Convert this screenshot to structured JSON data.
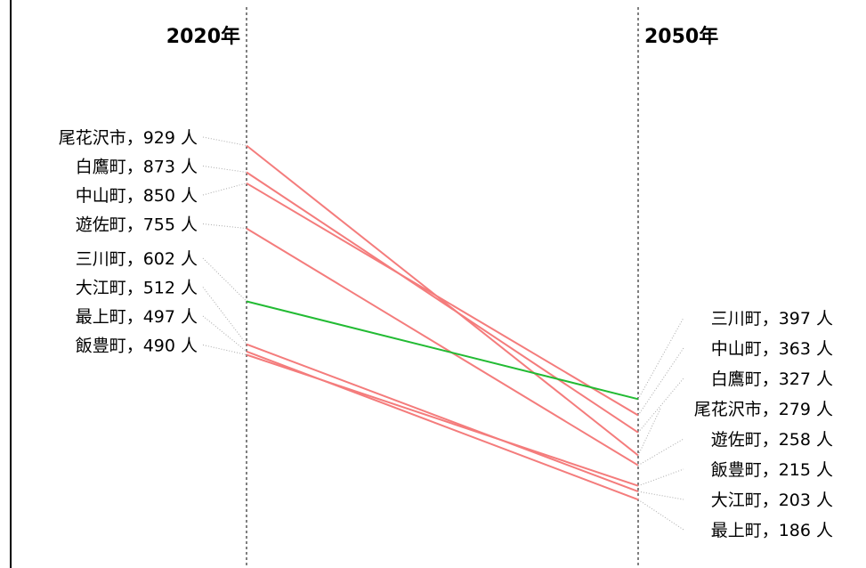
{
  "chart_data": {
    "type": "line",
    "title": "",
    "x": [
      "2020年",
      "2050年"
    ],
    "colors": {
      "decrease": "#f47c7c",
      "increase": "#22bb33"
    },
    "series": [
      {
        "name": "尾花沢市",
        "values": [
          929,
          279
        ]
      },
      {
        "name": "白鷹町",
        "values": [
          873,
          327
        ]
      },
      {
        "name": "中山町",
        "values": [
          850,
          363
        ]
      },
      {
        "name": "遊佐町",
        "values": [
          755,
          258
        ]
      },
      {
        "name": "三川町",
        "values": [
          602,
          397
        ]
      },
      {
        "name": "大江町",
        "values": [
          512,
          203
        ]
      },
      {
        "name": "最上町",
        "values": [
          497,
          186
        ]
      },
      {
        "name": "飯豊町",
        "values": [
          490,
          215
        ]
      }
    ],
    "left_labels": [
      "尾花沢市，929 人",
      "白鷹町，873 人",
      "中山町，850 人",
      "遊佐町，755 人",
      "三川町，602 人",
      "大江町，512 人",
      "最上町，497 人",
      "飯豊町，490 人"
    ],
    "right_labels": [
      "三川町，397 人",
      "中山町，363 人",
      "白鷹町，327 人",
      "尾花沢市，279 人",
      "遊佐町，258 人",
      "飯豊町，215 人",
      "大江町，203 人",
      "最上町，186 人"
    ]
  }
}
